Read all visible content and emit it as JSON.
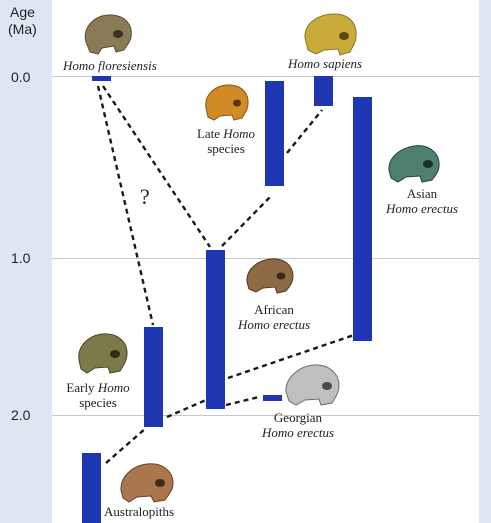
{
  "axis": {
    "title_line1": "Age",
    "title_line2": "(Ma)",
    "ticks": [
      "0.0",
      "1.0",
      "2.0"
    ]
  },
  "taxa": {
    "homo_floresiensis": {
      "name": "Homo floresiensis"
    },
    "homo_sapiens": {
      "name": "Homo sapiens"
    },
    "late_homo": {
      "line1": "Late",
      "line1_italic": "Homo",
      "line2": "species"
    },
    "asian_erectus": {
      "line1": "Asian",
      "line2": "Homo erectus"
    },
    "african_erectus": {
      "line1": "African",
      "line2": "Homo erectus"
    },
    "early_homo": {
      "line1": "Early",
      "line1_italic": "Homo",
      "line2": "species"
    },
    "georgian_erectus": {
      "line1": "Georgian",
      "line2": "Homo erectus"
    },
    "australopiths": {
      "name": "Australopiths"
    }
  },
  "uncertain_marker": "?",
  "colors": {
    "bar": "#1f36b3",
    "background": "#dde6f1",
    "panel": "#ffffff"
  }
}
